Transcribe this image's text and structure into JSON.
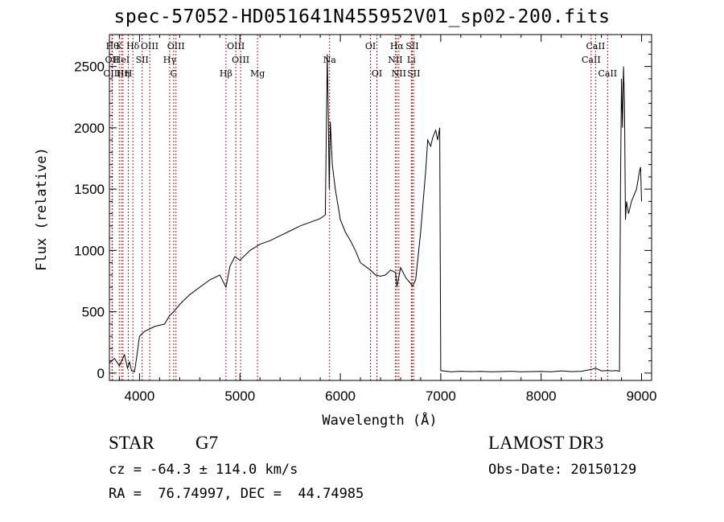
{
  "chart_data": {
    "type": "line",
    "title": "spec-57052-HD051641N455952V01_sp02-200.fits",
    "xlabel": "Wavelength (Å)",
    "ylabel": "Flux (relative)",
    "xlim": [
      3700,
      9100
    ],
    "ylim": [
      -60,
      2760
    ],
    "xticks": [
      4000,
      5000,
      6000,
      7000,
      8000,
      9000
    ],
    "yticks": [
      0,
      500,
      1000,
      1500,
      2000,
      2500
    ],
    "series": [
      {
        "name": "flux",
        "x": [
          3700,
          3750,
          3800,
          3850,
          3880,
          3900,
          3920,
          3950,
          3970,
          4000,
          4050,
          4100,
          4150,
          4200,
          4250,
          4300,
          4340,
          4400,
          4450,
          4500,
          4600,
          4700,
          4800,
          4861,
          4900,
          4950,
          5000,
          5100,
          5200,
          5300,
          5400,
          5500,
          5600,
          5700,
          5800,
          5850,
          5870,
          5880,
          5890,
          5900,
          5920,
          5950,
          6000,
          6050,
          6100,
          6150,
          6200,
          6250,
          6300,
          6350,
          6400,
          6450,
          6500,
          6550,
          6563,
          6600,
          6650,
          6700,
          6720,
          6750,
          6800,
          6850,
          6870,
          6900,
          6920,
          6950,
          6970,
          6990,
          6995,
          7000,
          7100,
          7200,
          7300,
          7400,
          7500,
          7600,
          7700,
          7800,
          7900,
          8000,
          8100,
          8200,
          8300,
          8400,
          8500,
          8542,
          8600,
          8662,
          8700,
          8750,
          8780,
          8790,
          8800,
          8810,
          8820,
          8830,
          8840,
          8850,
          8870,
          8900,
          8950,
          8980,
          8990,
          9000
        ],
        "y": [
          80,
          120,
          60,
          150,
          40,
          90,
          20,
          10,
          120,
          300,
          340,
          360,
          380,
          390,
          400,
          470,
          500,
          560,
          600,
          640,
          700,
          760,
          800,
          700,
          870,
          950,
          920,
          1000,
          1050,
          1080,
          1120,
          1160,
          1200,
          1230,
          1260,
          1290,
          2600,
          2100,
          1500,
          2050,
          1700,
          1500,
          1250,
          1150,
          1080,
          1000,
          900,
          870,
          840,
          800,
          790,
          800,
          840,
          820,
          700,
          860,
          780,
          730,
          710,
          760,
          1150,
          1650,
          1900,
          1850,
          1920,
          1980,
          1900,
          2000,
          900,
          20,
          10,
          15,
          12,
          14,
          10,
          12,
          15,
          10,
          12,
          14,
          10,
          18,
          12,
          15,
          30,
          40,
          18,
          20,
          18,
          20,
          15,
          1500,
          2400,
          2000,
          2500,
          2200,
          1250,
          1400,
          1300,
          1400,
          1500,
          1650,
          1680,
          1400
        ]
      }
    ],
    "lines": [
      {
        "x": 3730,
        "row": 0,
        "label": "Hθ"
      },
      {
        "x": 3727,
        "row": 1,
        "label": "OII"
      },
      {
        "x": 3727,
        "row": 2,
        "label": "OIII"
      },
      {
        "x": 3798,
        "row": 0,
        "label": "K"
      },
      {
        "x": 3820,
        "row": 1,
        "label": "HeI"
      },
      {
        "x": 3835,
        "row": 2,
        "label": "Hη"
      },
      {
        "x": 3889,
        "row": 2,
        "label": "H"
      },
      {
        "x": 3934,
        "row": 0,
        "label": "Hδ"
      },
      {
        "x": 4026,
        "row": 1,
        "label": "SII"
      },
      {
        "x": 4101,
        "row": 0,
        "label": "OIII"
      },
      {
        "x": 4300,
        "row": 1,
        "label": "Hγ"
      },
      {
        "x": 4340,
        "row": 2,
        "label": "G"
      },
      {
        "x": 4363,
        "row": 0,
        "label": "OIII"
      },
      {
        "x": 4861,
        "row": 2,
        "label": "Hβ"
      },
      {
        "x": 4959,
        "row": 0,
        "label": "OIII"
      },
      {
        "x": 5007,
        "row": 1,
        "label": "OIII"
      },
      {
        "x": 5175,
        "row": 2,
        "label": "Mg"
      },
      {
        "x": 5893,
        "row": 1,
        "label": "Na"
      },
      {
        "x": 6300,
        "row": 0,
        "label": "OI"
      },
      {
        "x": 6364,
        "row": 2,
        "label": "OI"
      },
      {
        "x": 6548,
        "row": 1,
        "label": "NII"
      },
      {
        "x": 6563,
        "row": 0,
        "label": "Hα"
      },
      {
        "x": 6583,
        "row": 2,
        "label": "NII"
      },
      {
        "x": 6707,
        "row": 1,
        "label": "Li"
      },
      {
        "x": 6716,
        "row": 0,
        "label": "SII"
      },
      {
        "x": 6731,
        "row": 2,
        "label": "SII"
      },
      {
        "x": 8498,
        "row": 1,
        "label": "CaII"
      },
      {
        "x": 8542,
        "row": 0,
        "label": "CaII"
      },
      {
        "x": 8662,
        "row": 2,
        "label": "CaII"
      }
    ]
  },
  "info": {
    "obj_type": "STAR",
    "subclass": "G7",
    "survey": "LAMOST DR3",
    "cz": "cz = -64.3 ± 114.0 km/s",
    "obs_date": "Obs-Date: 20150129",
    "radec": "RA =  76.74997, DEC =  44.74985"
  }
}
